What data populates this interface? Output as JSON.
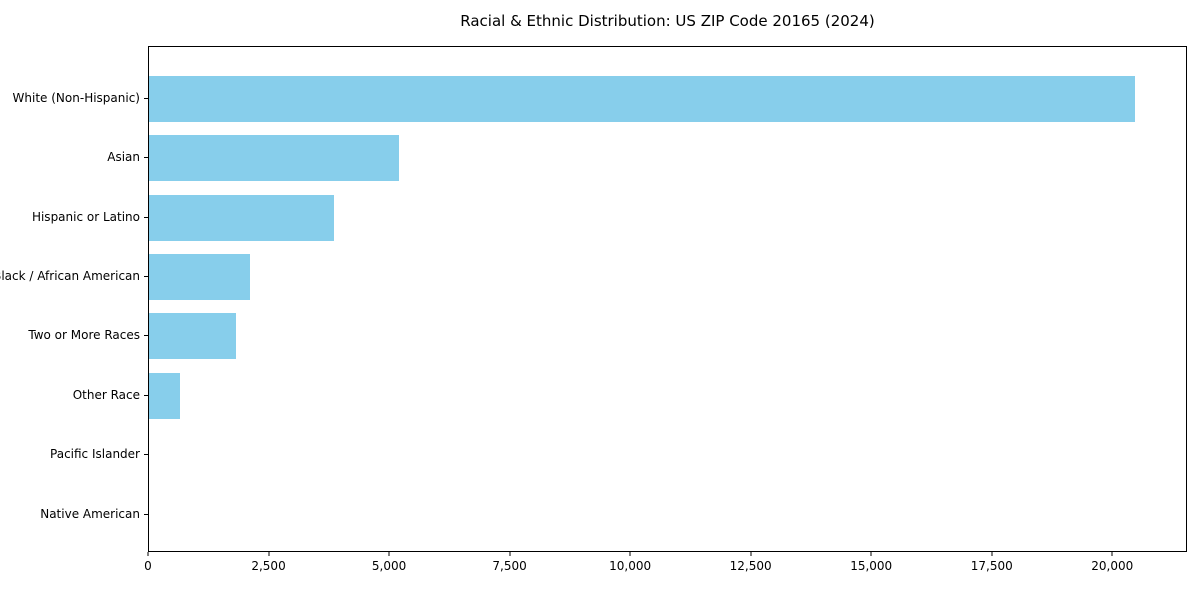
{
  "figure": {
    "background_color": "#ffffff",
    "frame_color": "#000000"
  },
  "chart_data": {
    "type": "bar",
    "orientation": "horizontal",
    "title": "Racial & Ethnic Distribution: US ZIP Code 20165 (2024)",
    "xlabel": "",
    "ylabel": "",
    "categories": [
      "White (Non-Hispanic)",
      "Asian",
      "Hispanic or Latino",
      "Black / African American",
      "Two or More Races",
      "Other Race",
      "Pacific Islander",
      "Native American"
    ],
    "values": [
      20500,
      5200,
      3840,
      2100,
      1810,
      640,
      0,
      0
    ],
    "bar_color": "#87CEEB",
    "xlim": [
      0,
      21550
    ],
    "x_ticks": [
      0,
      2500,
      5000,
      7500,
      10000,
      12500,
      15000,
      17500,
      20000
    ],
    "x_tick_labels": [
      "0",
      "2,500",
      "5,000",
      "7,500",
      "10,000",
      "12,500",
      "15,000",
      "17,500",
      "20,000"
    ],
    "grid": false,
    "legend": "none"
  }
}
